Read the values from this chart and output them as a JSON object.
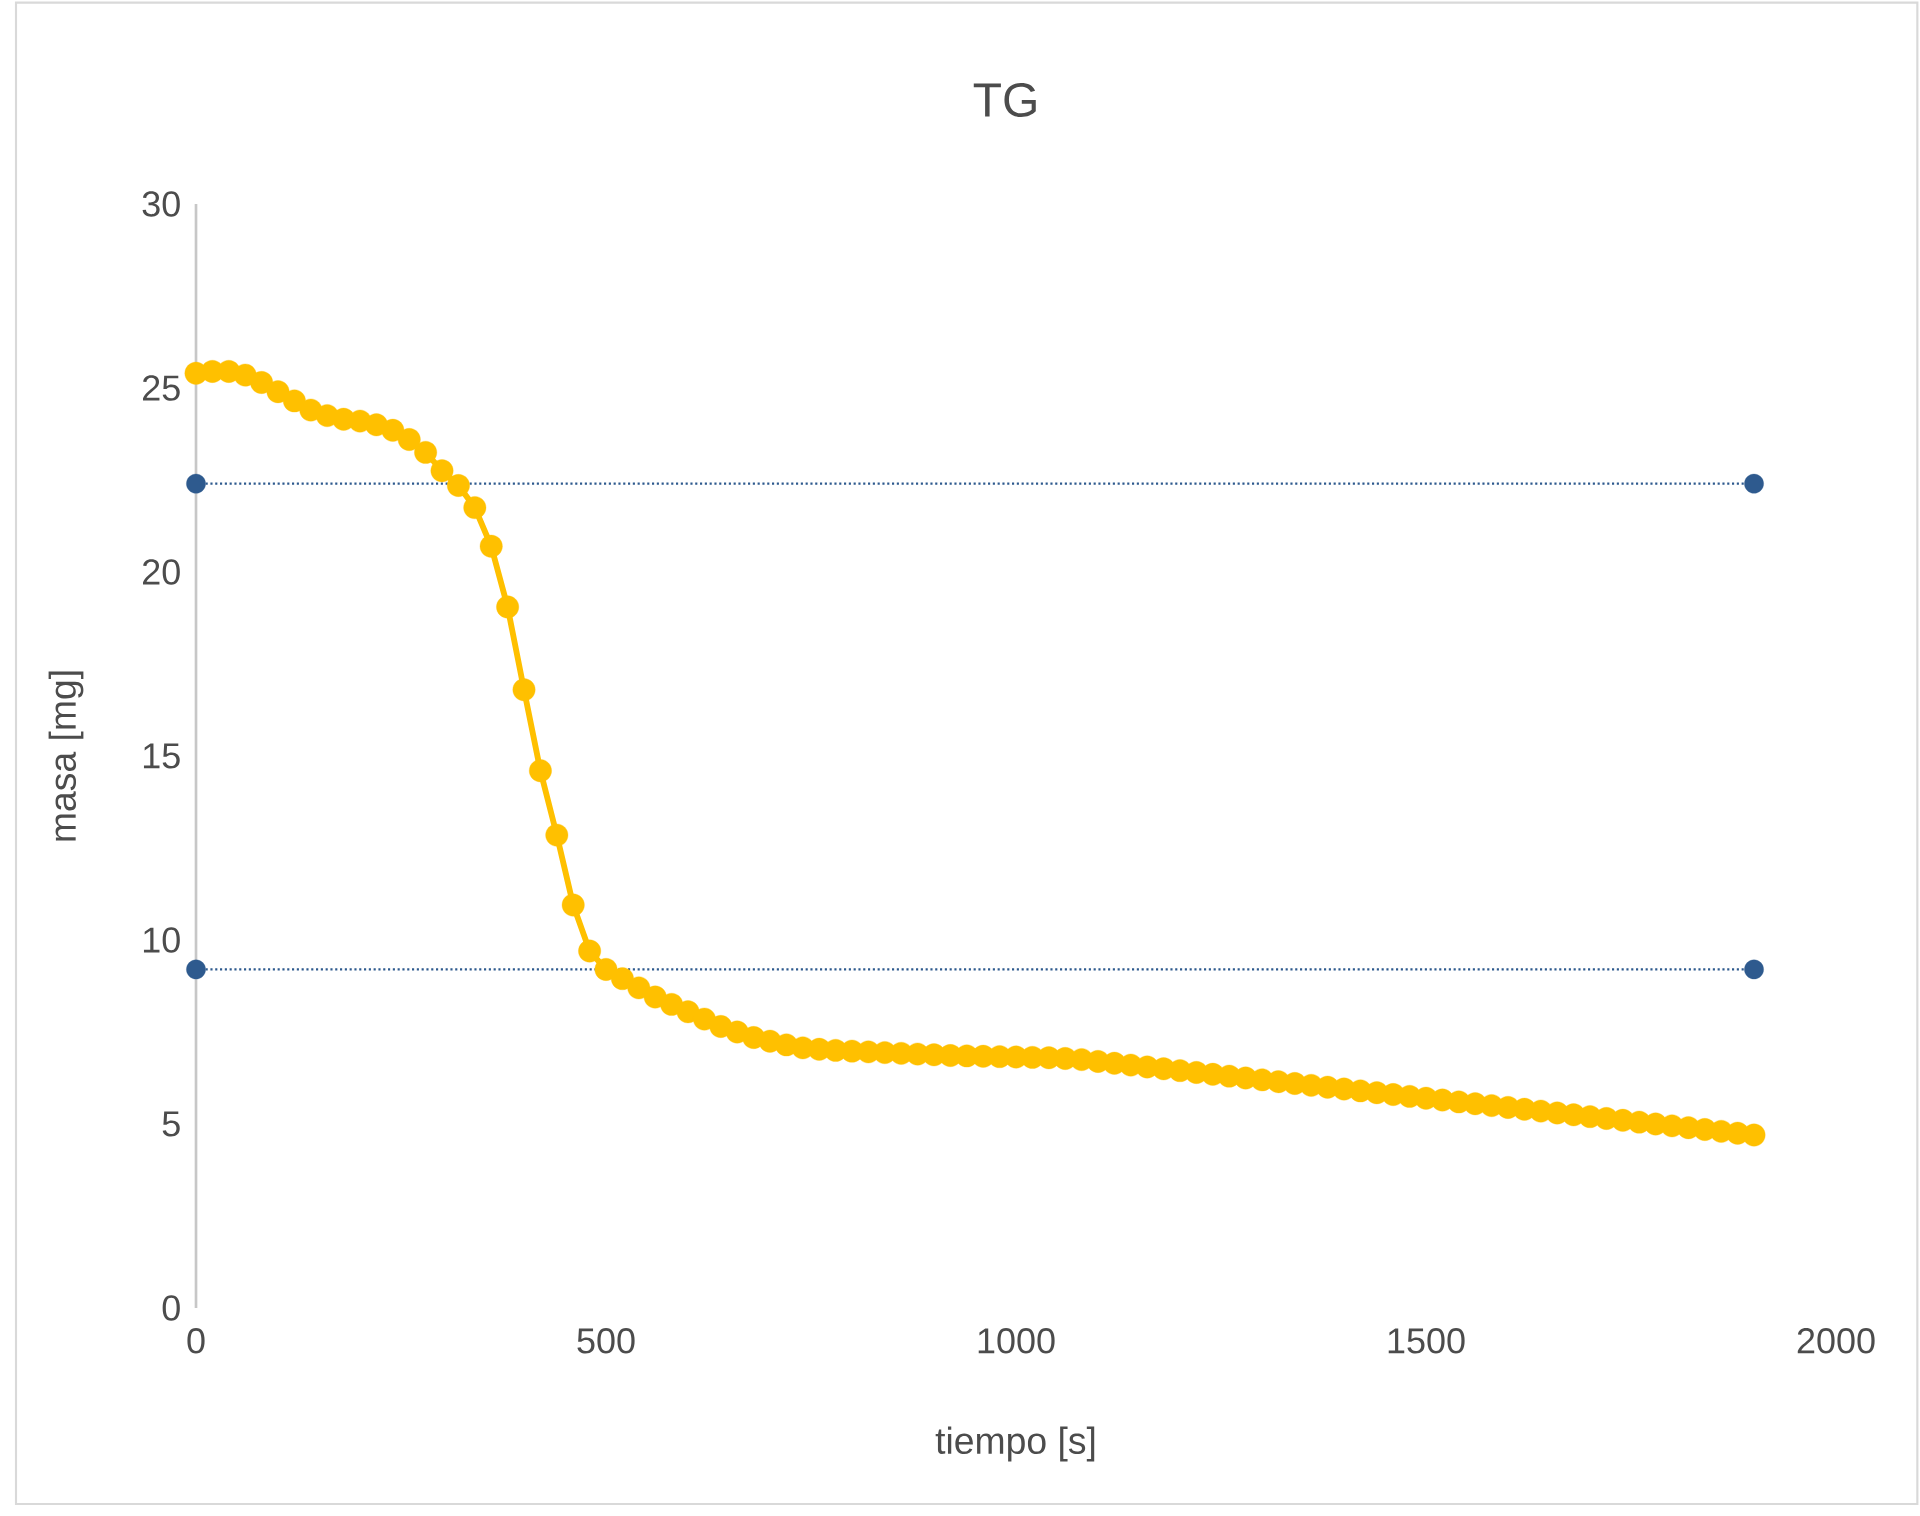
{
  "chart_data": {
    "type": "line",
    "title": "TG",
    "xlabel": "tiempo  [s]",
    "ylabel": "masa [mg]",
    "xlim": [
      0,
      2000
    ],
    "ylim": [
      0,
      30
    ],
    "xticks": [
      0,
      500,
      1000,
      1500,
      2000
    ],
    "yticks": [
      0,
      5,
      10,
      15,
      20,
      25,
      30
    ],
    "grid": false,
    "series": [
      {
        "color": "#ffc000",
        "marker": "circle",
        "line_style": "solid",
        "x": [
          0,
          20,
          40,
          60,
          80,
          100,
          120,
          140,
          160,
          180,
          200,
          220,
          240,
          260,
          280,
          300,
          320,
          340,
          360,
          380,
          400,
          420,
          440,
          460,
          480,
          500,
          520,
          540,
          560,
          580,
          600,
          620,
          640,
          660,
          680,
          700,
          720,
          740,
          760,
          780,
          800,
          820,
          840,
          860,
          880,
          900,
          920,
          940,
          960,
          980,
          1000,
          1020,
          1040,
          1060,
          1080,
          1100,
          1120,
          1140,
          1160,
          1180,
          1200,
          1220,
          1240,
          1260,
          1280,
          1300,
          1320,
          1340,
          1360,
          1380,
          1400,
          1420,
          1440,
          1460,
          1480,
          1500,
          1520,
          1540,
          1560,
          1580,
          1600,
          1620,
          1640,
          1660,
          1680,
          1700,
          1720,
          1740,
          1760,
          1780,
          1800,
          1820,
          1840,
          1860,
          1880,
          1900
        ],
        "values": [
          25.4,
          25.45,
          25.45,
          25.35,
          25.15,
          24.9,
          24.65,
          24.4,
          24.25,
          24.15,
          24.1,
          24.0,
          23.85,
          23.6,
          23.25,
          22.75,
          22.35,
          21.75,
          20.7,
          19.05,
          16.8,
          14.6,
          12.85,
          10.95,
          9.7,
          9.2,
          8.95,
          8.7,
          8.45,
          8.25,
          8.05,
          7.85,
          7.65,
          7.5,
          7.35,
          7.25,
          7.15,
          7.07,
          7.03,
          7.0,
          6.98,
          6.96,
          6.94,
          6.92,
          6.9,
          6.88,
          6.86,
          6.85,
          6.84,
          6.83,
          6.82,
          6.81,
          6.8,
          6.78,
          6.75,
          6.7,
          6.65,
          6.6,
          6.55,
          6.5,
          6.45,
          6.4,
          6.35,
          6.3,
          6.25,
          6.2,
          6.15,
          6.1,
          6.05,
          6.0,
          5.95,
          5.9,
          5.85,
          5.8,
          5.75,
          5.7,
          5.65,
          5.6,
          5.55,
          5.5,
          5.45,
          5.4,
          5.35,
          5.3,
          5.25,
          5.2,
          5.15,
          5.1,
          5.05,
          5.0,
          4.95,
          4.9,
          4.85,
          4.8,
          4.75,
          4.7
        ]
      },
      {
        "color": "#2e5a8e",
        "marker": "circle",
        "line_style": "dotted",
        "x": [
          0,
          1900
        ],
        "values": [
          22.4,
          22.4
        ]
      },
      {
        "color": "#2e5a8e",
        "marker": "circle",
        "line_style": "dotted",
        "x": [
          0,
          1900
        ],
        "values": [
          9.2,
          9.2
        ]
      }
    ]
  }
}
